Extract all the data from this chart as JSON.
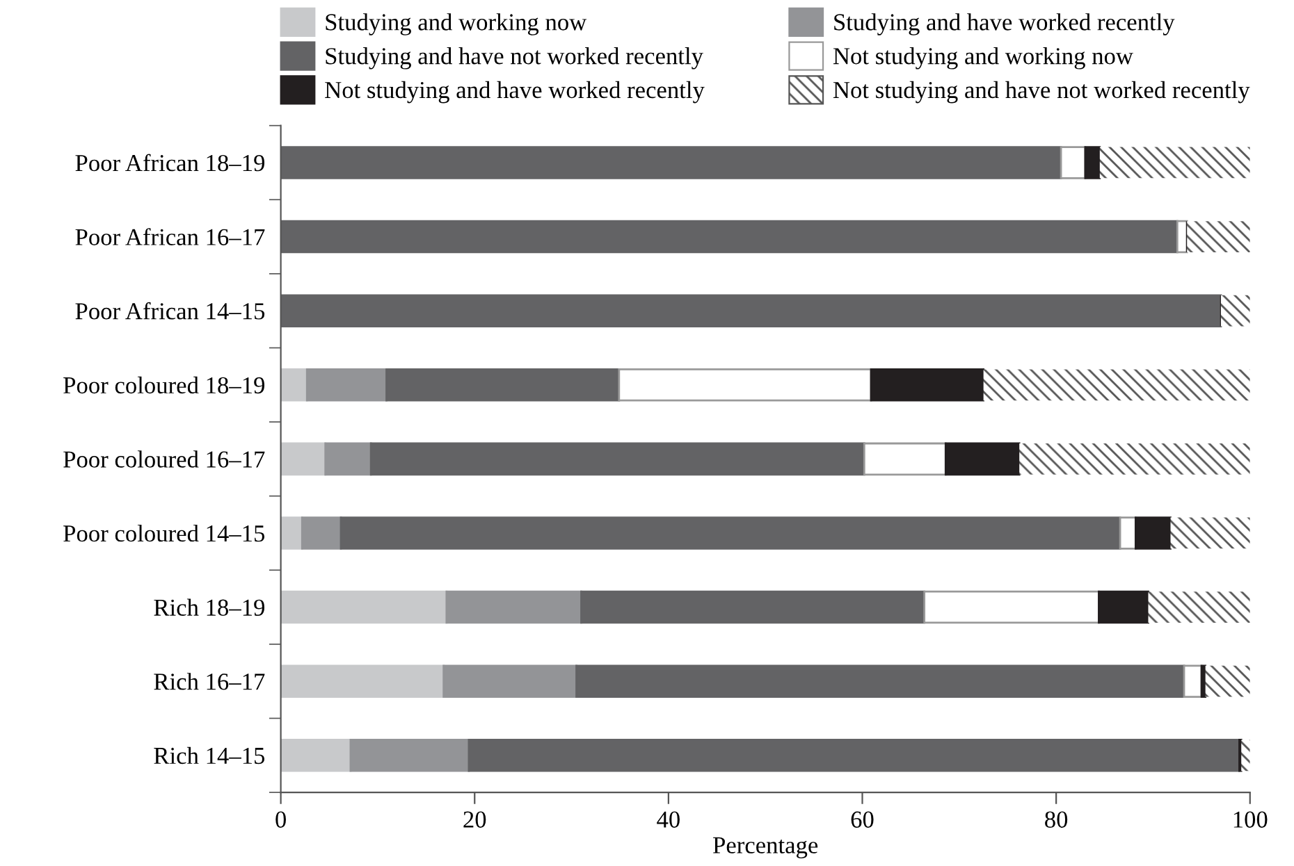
{
  "chart_data": {
    "type": "bar",
    "orientation": "horizontal",
    "stacked": true,
    "xlabel": "Percentage",
    "categories": [
      "Poor African 18–19",
      "Poor African 16–17",
      "Poor African 14–15",
      "Poor coloured 18–19",
      "Poor coloured 16–17",
      "Poor coloured 14–15",
      "Rich 18–19",
      "Rich 16–17",
      "Rich 14–15"
    ],
    "series": [
      {
        "name": "Studying and working now",
        "color": "#c8c9cb",
        "values": [
          0,
          0,
          0,
          2.7,
          4.6,
          2.2,
          17.1,
          16.8,
          7.2
        ]
      },
      {
        "name": "Studying and have worked recently",
        "color": "#939497",
        "values": [
          0,
          0,
          0,
          8.2,
          4.7,
          4,
          13.9,
          13.7,
          12.2
        ]
      },
      {
        "name": "Studying and have not worked recently",
        "color": "#636365",
        "values": [
          80.5,
          92.5,
          97,
          24,
          50.9,
          80.4,
          35.4,
          62.7,
          79.5
        ]
      },
      {
        "name": "Not studying and working now",
        "color": "#ffffff",
        "values": [
          2.5,
          1,
          0,
          26,
          8.4,
          1.6,
          18,
          1.8,
          0
        ]
      },
      {
        "name": "Not studying and have worked recently",
        "color": "#231f20",
        "values": [
          1.5,
          0,
          0,
          11.6,
          7.6,
          3.6,
          5.1,
          0.4,
          0.2
        ]
      },
      {
        "name": "Not studying and have not worked recently",
        "color": "#555555",
        "values": [
          15.5,
          6.5,
          3,
          27.5,
          23.8,
          8.2,
          10.5,
          4.6,
          0.9
        ]
      }
    ],
    "xlim": [
      0,
      100
    ],
    "xticks": [
      0,
      20,
      40,
      60,
      80,
      100
    ],
    "grid": false,
    "legend": "top"
  }
}
